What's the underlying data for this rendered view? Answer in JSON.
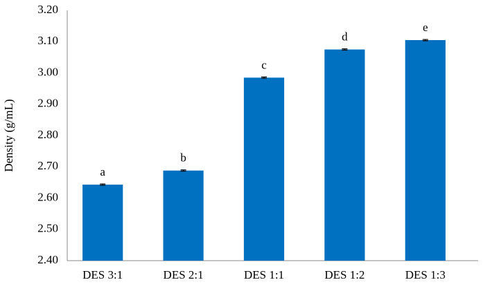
{
  "chart_data": {
    "type": "bar",
    "y_label": "Density (g/mL)",
    "categories": [
      "DES 3:1",
      "DES 2:1",
      "DES 1:1",
      "DES 1:2",
      "DES 1:3"
    ],
    "values": [
      2.643,
      2.688,
      2.985,
      3.075,
      3.105
    ],
    "errors": [
      0.002,
      0.002,
      0.002,
      0.002,
      0.002
    ],
    "annotations": [
      "a",
      "b",
      "c",
      "d",
      "e"
    ],
    "color": "#0070c0",
    "ylim": [
      2.4,
      3.2
    ],
    "yticks": [
      {
        "value": 2.4,
        "label": "2.40"
      },
      {
        "value": 2.5,
        "label": "2.50"
      },
      {
        "value": 2.6,
        "label": "2.60"
      },
      {
        "value": 2.7,
        "label": "2.70"
      },
      {
        "value": 2.8,
        "label": "2.80"
      },
      {
        "value": 2.9,
        "label": "2.90"
      },
      {
        "value": 3.0,
        "label": "3.00"
      },
      {
        "value": 3.1,
        "label": "3.10"
      },
      {
        "value": 3.2,
        "label": "3.20"
      }
    ],
    "grid": false
  }
}
